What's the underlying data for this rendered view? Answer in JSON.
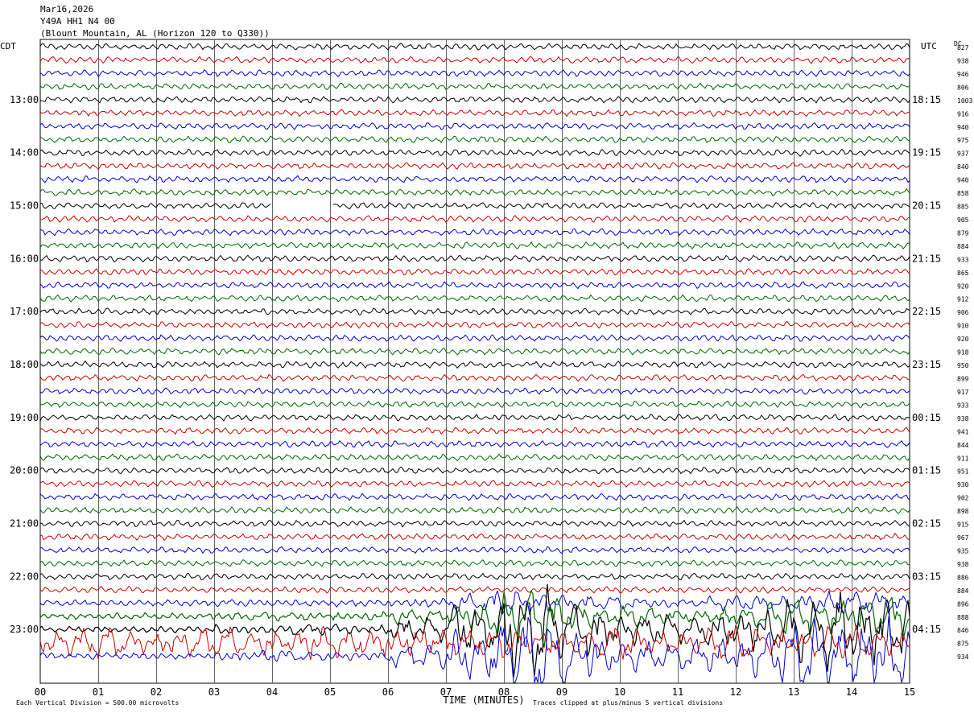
{
  "header": {
    "date": "Mar16,2026",
    "station": "Y49A HH1 N4 00",
    "location": "(Blount Mountain, AL (Horizon 120 to Q330))"
  },
  "chart_data": {
    "type": "line",
    "title": "Mar16,2026",
    "left_timezone_label": "CDT",
    "right_timezone_label": "UTC",
    "dc_label": "DC",
    "xlabel": "TIME (MINUTES)",
    "x_ticks": [
      "00",
      "01",
      "02",
      "03",
      "04",
      "05",
      "06",
      "07",
      "08",
      "09",
      "10",
      "11",
      "12",
      "13",
      "14",
      "15"
    ],
    "xlim": [
      0,
      15
    ],
    "left_hour_labels": [
      "13:00",
      "14:00",
      "15:00",
      "16:00",
      "17:00",
      "18:00",
      "19:00",
      "20:00",
      "21:00",
      "22:00",
      "23:00"
    ],
    "right_hour_labels": [
      "18:15",
      "19:15",
      "20:15",
      "21:15",
      "22:15",
      "23:15",
      "00:15",
      "01:15",
      "02:15",
      "03:15",
      "04:15"
    ],
    "hour_label_every_n_traces": 4,
    "first_hour_label_trace_index": 4,
    "trace_colors": [
      "#000000",
      "#cc0000",
      "#0000cc",
      "#006600"
    ],
    "trace_dc_values": [
      827,
      938,
      946,
      806,
      1003,
      916,
      940,
      975,
      937,
      840,
      940,
      858,
      885,
      905,
      879,
      884,
      933,
      865,
      920,
      912,
      906,
      910,
      920,
      918,
      950,
      899,
      917,
      933,
      938,
      941,
      844,
      911,
      951,
      930,
      902,
      898,
      915,
      967,
      935,
      938,
      886,
      884,
      896,
      888,
      846,
      875,
      934
    ],
    "gap": {
      "trace_index": 12,
      "from_minute": 4.0,
      "to_minute": 5.05
    },
    "event": {
      "start_trace_index": 42,
      "onset_minute": 6.0,
      "peak_minute_range": [
        7.8,
        8.8
      ]
    },
    "grid": true,
    "footer_left": "Each Vertical Division =  500.00 microvolts",
    "footer_right": "Traces clipped at plus/minus 5 vertical divisions"
  }
}
